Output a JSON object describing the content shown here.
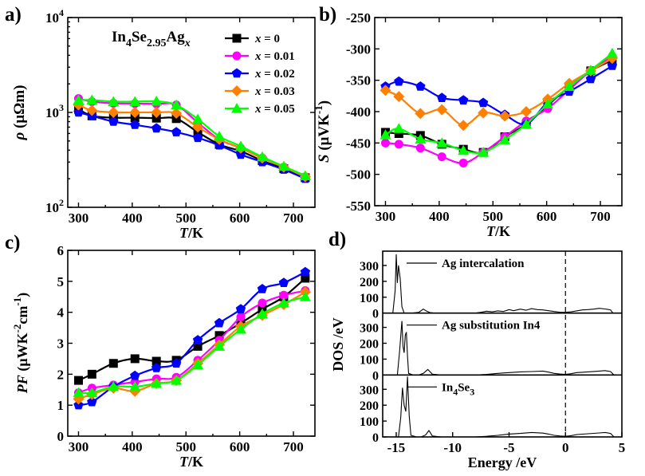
{
  "chart_data": [
    {
      "panel": "a)",
      "type": "line",
      "xlabel_italic": "T",
      "xlabel_unit": "/K",
      "ylabel_italic": "ρ",
      "ylabel_unit": " (μΩm)",
      "compound_label": {
        "a": "In",
        "b": "4",
        "c": "Se",
        "d": "2.95",
        "e": "Ag",
        "f": "x"
      },
      "xlim": [
        280,
        740
      ],
      "xticks": [
        300,
        400,
        500,
        600,
        700
      ],
      "ylog": true,
      "ylim": [
        100,
        10000
      ],
      "yticks": [
        {
          "value": 100,
          "base": "10",
          "exp": "2"
        },
        {
          "value": 1000,
          "base": "10",
          "exp": "3"
        },
        {
          "value": 10000,
          "base": "10",
          "exp": "4"
        }
      ],
      "series": [
        {
          "name": "x = 0",
          "legend_var": "x",
          "legend_val": " = 0",
          "color": "#000000",
          "marker": "square",
          "x": [
            300,
            325,
            365,
            405,
            445,
            482,
            522,
            562,
            602,
            642,
            682,
            722
          ],
          "y": [
            1080,
            920,
            880,
            880,
            870,
            860,
            620,
            460,
            390,
            310,
            255,
            205
          ]
        },
        {
          "name": "x = 0.01",
          "legend_var": "x",
          "legend_val": " = 0.01",
          "color": "#ff00ff",
          "marker": "circle",
          "x": [
            300,
            325,
            365,
            405,
            445,
            482,
            522,
            562,
            602,
            642,
            682,
            722
          ],
          "y": [
            1400,
            1300,
            1250,
            1240,
            1230,
            1200,
            780,
            520,
            420,
            330,
            265,
            210
          ]
        },
        {
          "name": "x = 0.02",
          "legend_var": "x",
          "legend_val": " = 0.02",
          "color": "#0000ff",
          "marker": "pentagon",
          "x": [
            300,
            325,
            365,
            405,
            445,
            482,
            522,
            562,
            602,
            642,
            682,
            722
          ],
          "y": [
            1000,
            920,
            800,
            740,
            680,
            620,
            540,
            450,
            360,
            300,
            250,
            200
          ]
        },
        {
          "name": "x = 0.03",
          "legend_var": "x",
          "legend_val": " = 0.03",
          "color": "#ff8000",
          "marker": "diamond",
          "x": [
            300,
            325,
            365,
            405,
            445,
            482,
            522,
            562,
            602,
            642,
            682,
            722
          ],
          "y": [
            1200,
            1050,
            1000,
            1000,
            1000,
            980,
            700,
            520,
            420,
            330,
            265,
            210
          ]
        },
        {
          "name": "x = 0.05",
          "legend_var": "x",
          "legend_val": " = 0.05",
          "color": "#00ff00",
          "marker": "triangle",
          "x": [
            300,
            325,
            365,
            405,
            445,
            482,
            522,
            562,
            602,
            642,
            682,
            722
          ],
          "y": [
            1350,
            1350,
            1300,
            1300,
            1310,
            1200,
            850,
            560,
            440,
            340,
            270,
            215
          ]
        }
      ]
    },
    {
      "panel": "b)",
      "type": "line",
      "xlabel_italic": "T",
      "xlabel_unit": "/K",
      "ylabel_italic": "S",
      "ylabel_unit_a": " (μVK",
      "ylabel_unit_exp": "-1",
      "ylabel_unit_b": ")",
      "xlim": [
        280,
        740
      ],
      "xticks": [
        300,
        400,
        500,
        600,
        700
      ],
      "ylim": [
        -550,
        -250
      ],
      "yticks": [
        -550,
        -500,
        -450,
        -400,
        -350,
        -300,
        -250
      ],
      "series": [
        {
          "name": "x = 0",
          "color": "#000000",
          "marker": "square",
          "x": [
            300,
            325,
            365,
            405,
            445,
            482,
            522,
            562,
            602,
            642,
            682,
            722
          ],
          "y": [
            -433,
            -435,
            -438,
            -452,
            -460,
            -465,
            -440,
            -420,
            -390,
            -360,
            -335,
            -318
          ]
        },
        {
          "name": "x = 0.01",
          "color": "#ff00ff",
          "marker": "circle",
          "x": [
            300,
            325,
            365,
            405,
            445,
            482,
            522,
            562,
            602,
            642,
            682,
            722
          ],
          "y": [
            -450,
            -452,
            -458,
            -472,
            -482,
            -465,
            -440,
            -415,
            -395,
            -365,
            -335,
            -312
          ]
        },
        {
          "name": "x = 0.02",
          "color": "#0000ff",
          "marker": "pentagon",
          "x": [
            300,
            325,
            365,
            405,
            445,
            482,
            522,
            562,
            602,
            642,
            682,
            722
          ],
          "y": [
            -360,
            -352,
            -360,
            -378,
            -382,
            -386,
            -405,
            -420,
            -385,
            -368,
            -348,
            -327
          ]
        },
        {
          "name": "x = 0.03",
          "color": "#ff8000",
          "marker": "diamond",
          "x": [
            300,
            325,
            365,
            405,
            445,
            482,
            522,
            562,
            602,
            642,
            682,
            722
          ],
          "y": [
            -366,
            -376,
            -403,
            -397,
            -422,
            -402,
            -407,
            -400,
            -380,
            -355,
            -335,
            -315
          ]
        },
        {
          "name": "x = 0.05",
          "color": "#00ff00",
          "marker": "triangle",
          "x": [
            300,
            325,
            365,
            405,
            445,
            482,
            522,
            562,
            602,
            642,
            682,
            722
          ],
          "y": [
            -437,
            -427,
            -444,
            -450,
            -462,
            -465,
            -445,
            -420,
            -388,
            -360,
            -334,
            -307
          ]
        }
      ]
    },
    {
      "panel": "c)",
      "type": "line",
      "xlabel_italic": "T",
      "xlabel_unit": "/K",
      "ylabel_italic": "PF",
      "ylabel_unit_a": " (μWK",
      "ylabel_unit_exp1": "-2",
      "ylabel_unit_b": "cm",
      "ylabel_unit_exp2": "-1",
      "ylabel_unit_c": ")",
      "xlim": [
        280,
        740
      ],
      "xticks": [
        300,
        400,
        500,
        600,
        700
      ],
      "ylim": [
        0,
        6
      ],
      "yticks": [
        0,
        1,
        2,
        3,
        4,
        5,
        6
      ],
      "series": [
        {
          "name": "x = 0",
          "color": "#000000",
          "marker": "square",
          "x": [
            300,
            325,
            365,
            405,
            445,
            482,
            522,
            562,
            602,
            642,
            682,
            722
          ],
          "y": [
            1.8,
            2.0,
            2.35,
            2.5,
            2.42,
            2.45,
            2.9,
            3.25,
            3.65,
            4.1,
            4.5,
            5.1
          ]
        },
        {
          "name": "x = 0.01",
          "color": "#ff00ff",
          "marker": "circle",
          "x": [
            300,
            325,
            365,
            405,
            445,
            482,
            522,
            562,
            602,
            642,
            682,
            722
          ],
          "y": [
            1.4,
            1.55,
            1.65,
            1.75,
            1.85,
            1.9,
            2.45,
            3.1,
            3.85,
            4.3,
            4.55,
            4.7
          ]
        },
        {
          "name": "x = 0.02",
          "color": "#0000ff",
          "marker": "pentagon",
          "x": [
            300,
            325,
            365,
            405,
            445,
            482,
            522,
            562,
            602,
            642,
            682,
            722
          ],
          "y": [
            1.0,
            1.1,
            1.6,
            1.95,
            2.2,
            2.35,
            3.1,
            3.65,
            4.1,
            4.75,
            4.95,
            5.3
          ]
        },
        {
          "name": "x = 0.03",
          "color": "#ff8000",
          "marker": "diamond",
          "x": [
            300,
            325,
            365,
            405,
            445,
            482,
            522,
            562,
            602,
            642,
            682,
            722
          ],
          "y": [
            1.2,
            1.35,
            1.55,
            1.45,
            1.7,
            1.8,
            2.35,
            2.95,
            3.55,
            3.9,
            4.25,
            4.65
          ]
        },
        {
          "name": "x = 0.05",
          "color": "#00ff00",
          "marker": "triangle",
          "x": [
            300,
            325,
            365,
            405,
            445,
            482,
            522,
            562,
            602,
            642,
            682,
            722
          ],
          "y": [
            1.4,
            1.4,
            1.6,
            1.6,
            1.7,
            1.8,
            2.3,
            2.9,
            3.45,
            3.95,
            4.3,
            4.5
          ]
        }
      ]
    },
    {
      "panel": "d)",
      "type": "line",
      "xlabel": "Energy /eV",
      "ylabel": "DOS /eV",
      "xlim": [
        -16.2,
        5
      ],
      "xticks": [
        -15,
        -10,
        -5,
        0,
        5
      ],
      "ylim": [
        0,
        380
      ],
      "yticks": [
        0,
        100,
        200,
        300
      ],
      "fermi_level": 0,
      "sub_panels": [
        {
          "label": "Ag intercalation",
          "x": [
            -16.2,
            -15.6,
            -15.3,
            -15.1,
            -15.0,
            -14.9,
            -14.8,
            -14.65,
            -14.5,
            -14.3,
            -13.6,
            -13.0,
            -12.6,
            -12.3,
            -12.0,
            -11.6,
            -11.0,
            -10.0,
            -9.0,
            -8.0,
            -7.5,
            -7.0,
            -6.5,
            -6.0,
            -5.5,
            -5.0,
            -4.6,
            -4.0,
            -3.5,
            -3.0,
            -2.5,
            -2.0,
            -1.5,
            -1.0,
            -0.5,
            0.0,
            0.5,
            1.0,
            1.5,
            2.0,
            2.5,
            3.0,
            3.5,
            4.0,
            4.2
          ],
          "y": [
            0,
            0,
            0,
            140,
            370,
            190,
            300,
            220,
            40,
            0,
            0,
            5,
            25,
            12,
            3,
            0,
            0,
            0,
            0,
            0,
            5,
            12,
            8,
            14,
            10,
            22,
            15,
            25,
            18,
            28,
            22,
            20,
            15,
            10,
            6,
            5,
            8,
            14,
            20,
            22,
            25,
            30,
            26,
            20,
            0
          ]
        },
        {
          "label_a": "Ag substitution In4",
          "x": [
            -16.2,
            -15.0,
            -14.9,
            -14.7,
            -14.5,
            -14.4,
            -14.3,
            -14.2,
            -14.1,
            -14.0,
            -13.9,
            -13.5,
            -13.0,
            -12.6,
            -12.2,
            -11.8,
            -11.0,
            -10.0,
            -8.0,
            -7.0,
            -6.0,
            -5.0,
            -4.0,
            -3.0,
            -2.0,
            -1.5,
            -1.0,
            -0.5,
            0.0,
            0.5,
            1.0,
            2.0,
            3.0,
            3.5,
            4.0,
            4.3
          ],
          "y": [
            0,
            0,
            0,
            150,
            340,
            180,
            140,
            250,
            270,
            120,
            10,
            0,
            0,
            10,
            35,
            5,
            0,
            0,
            0,
            4,
            10,
            15,
            20,
            22,
            25,
            18,
            10,
            6,
            4,
            8,
            15,
            20,
            25,
            28,
            22,
            0
          ]
        },
        {
          "label_a": "In",
          "label_b": "4",
          "label_c": "Se",
          "label_d": "3",
          "x": [
            -16.2,
            -15.0,
            -14.8,
            -14.6,
            -14.45,
            -14.3,
            -14.15,
            -14.0,
            -13.85,
            -13.7,
            -13.2,
            -12.8,
            -12.4,
            -12.1,
            -11.8,
            -11.0,
            -10.0,
            -8.0,
            -7.0,
            -6.0,
            -5.0,
            -4.0,
            -3.0,
            -2.0,
            -1.5,
            -1.0,
            -0.5,
            0.0,
            0.5,
            1.0,
            2.0,
            3.0,
            3.5,
            4.0,
            4.3
          ],
          "y": [
            0,
            0,
            0,
            120,
            310,
            200,
            160,
            380,
            130,
            10,
            0,
            0,
            12,
            40,
            6,
            0,
            0,
            0,
            4,
            10,
            18,
            22,
            28,
            24,
            18,
            10,
            6,
            4,
            8,
            15,
            20,
            25,
            28,
            22,
            0
          ]
        }
      ]
    }
  ]
}
